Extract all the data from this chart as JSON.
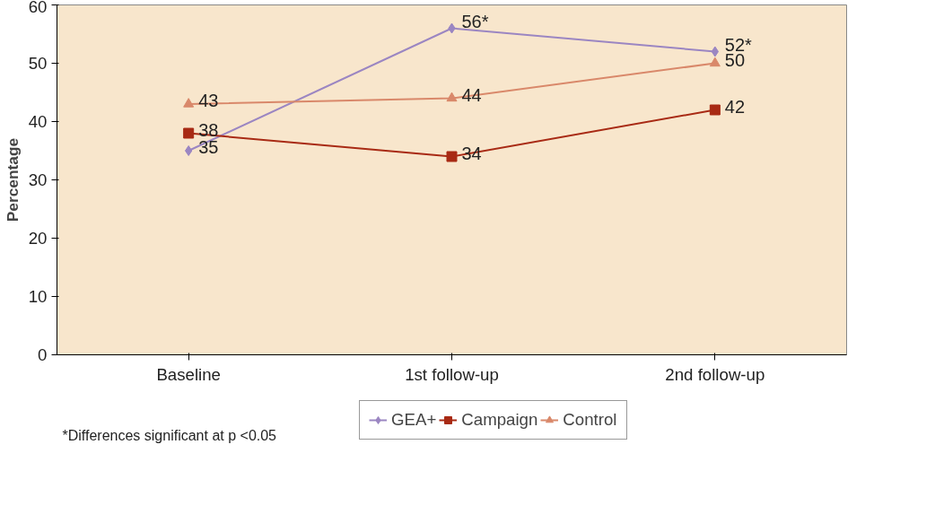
{
  "chart_data": {
    "type": "line",
    "ylabel": "Percentage",
    "categories": [
      "Baseline",
      "1st follow-up",
      "2nd follow-up"
    ],
    "series": [
      {
        "name": "GEA+",
        "color": "#9b86c2",
        "marker": "diamond",
        "values": [
          35,
          56,
          52
        ],
        "value_labels": [
          "35",
          "56*",
          "52*"
        ]
      },
      {
        "name": "Campaign",
        "color": "#a82a14",
        "marker": "square",
        "values": [
          38,
          34,
          42
        ],
        "value_labels": [
          "38",
          "34",
          "42"
        ]
      },
      {
        "name": "Control",
        "color": "#d9886a",
        "marker": "triangle",
        "values": [
          43,
          44,
          50
        ],
        "value_labels": [
          "43",
          "44",
          "50"
        ]
      }
    ],
    "ylim": [
      0,
      60
    ],
    "yticks": [
      0,
      10,
      20,
      30,
      40,
      50,
      60
    ],
    "grid": false,
    "legend": "bottom",
    "line_style": "solid",
    "annotations": [
      "*Differences significant at p <0.05"
    ]
  }
}
